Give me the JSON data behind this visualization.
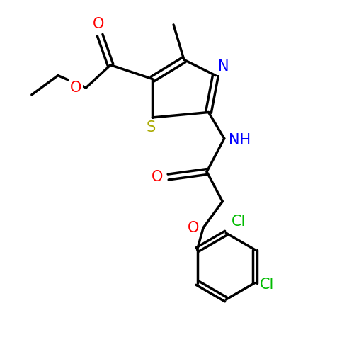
{
  "bg_color": "#ffffff",
  "bond_color": "#000000",
  "bond_width": 2.5,
  "atom_colors": {
    "O": "#ff0000",
    "N": "#0000ff",
    "S": "#aaaa00",
    "Cl": "#00bb00",
    "C": "#000000"
  },
  "font_size": 14,
  "figsize": [
    5.0,
    5.0
  ],
  "dpi": 100
}
